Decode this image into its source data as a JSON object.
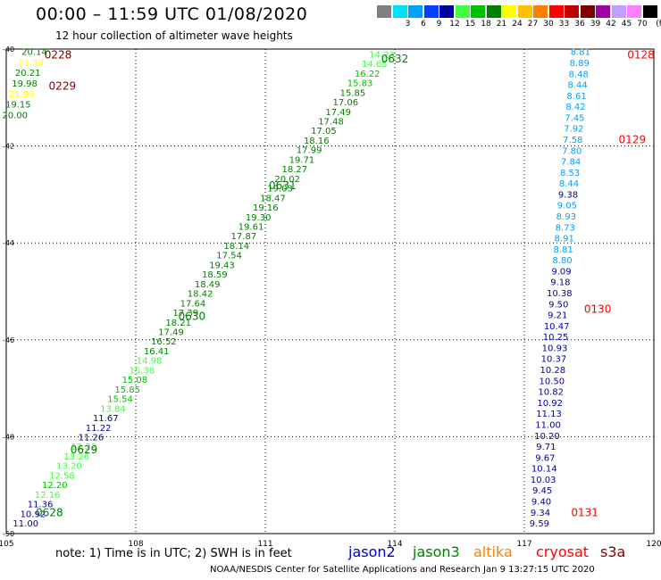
{
  "title": "00:00 – 11:59 UTC 01/08/2020",
  "subtitle": "12 hour collection of altimeter wave heights",
  "colorbar": {
    "unit": "(ft)",
    "swatches": [
      {
        "color": "#808080",
        "label": ""
      },
      {
        "color": "#00e0ff",
        "label": "3"
      },
      {
        "color": "#00a0ff",
        "label": "6"
      },
      {
        "color": "#0040ff",
        "label": "9"
      },
      {
        "color": "#0000a0",
        "label": "12"
      },
      {
        "color": "#40ff40",
        "label": "15"
      },
      {
        "color": "#00c000",
        "label": "18"
      },
      {
        "color": "#008000",
        "label": "21"
      },
      {
        "color": "#ffff00",
        "label": "24"
      },
      {
        "color": "#ffc000",
        "label": "27"
      },
      {
        "color": "#ff8000",
        "label": "30"
      },
      {
        "color": "#ff0000",
        "label": "33"
      },
      {
        "color": "#c00000",
        "label": "36"
      },
      {
        "color": "#800000",
        "label": "39"
      },
      {
        "color": "#a000a0",
        "label": "42"
      },
      {
        "color": "#c0a0ff",
        "label": "45"
      },
      {
        "color": "#ff80ff",
        "label": "70"
      },
      {
        "color": "#000000",
        "label": ""
      }
    ]
  },
  "map": {
    "lon_range": [
      105,
      120
    ],
    "lat_range": [
      -40,
      -50
    ],
    "x_ticks": [
      "105",
      "108",
      "111",
      "114",
      "117",
      "120"
    ],
    "y_ticks": [
      "-40",
      "-42",
      "-44",
      "-46",
      "-48",
      "-50"
    ]
  },
  "tracks": [
    {
      "color": "#00c000",
      "lon_start": 105.45,
      "lat_start": -49.78,
      "lon_end": 113.7,
      "lat_end": -40.1,
      "values": [
        "11.00",
        "10.92",
        "11.36",
        "12.16",
        "12.20",
        "12.58",
        "13.20",
        "13.26",
        "12.22",
        "11.26",
        "11.22",
        "11.67",
        "13.84",
        "15.54",
        "15.85",
        "15.08",
        "15.38",
        "14.98",
        "16.41",
        "16.52",
        "17.49",
        "18.21",
        "17.39",
        "17.64",
        "18.42",
        "18.49",
        "18.59",
        "19.43",
        "17.54",
        "18.14",
        "17.87",
        "19.61",
        "19.30",
        "19.16",
        "18.47",
        "19.03",
        "20.02",
        "18.27",
        "19.71",
        "17.99",
        "18.16",
        "17.05",
        "17.48",
        "17.49",
        "17.06",
        "15.85",
        "15.83",
        "16.22",
        "14.65",
        "14.23"
      ],
      "colors": [
        "#0000a0",
        "#0000a0",
        "#0000a0",
        "#40ff40",
        "#00c000",
        "#40ff40",
        "#40ff40",
        "#40ff40",
        "#40ff40",
        "#0000a0",
        "#0000a0",
        "#0000a0",
        "#40ff40",
        "#00c000",
        "#00c000",
        "#00c000",
        "#40ff40",
        "#40ff40",
        "#008000",
        "#008000",
        "#008000",
        "#008000",
        "#008000",
        "#008000",
        "#008000",
        "#008000",
        "#008000",
        "#008000",
        "#008000",
        "#008000",
        "#008000",
        "#008000",
        "#008000",
        "#008000",
        "#008000",
        "#008000",
        "#008000",
        "#008000",
        "#008000",
        "#008000",
        "#008000",
        "#008000",
        "#008000",
        "#008000",
        "#008000",
        "#008000",
        "#00c000",
        "#00c000",
        "#40ff40",
        "#40ff40"
      ]
    },
    {
      "color": "#00a0ff",
      "lon_start": 117.35,
      "lat_start": -49.78,
      "lon_end": 118.3,
      "lat_end": -40.05,
      "values": [
        "9.59",
        "9.34",
        "9.40",
        "9.45",
        "10.03",
        "10.14",
        "9.67",
        "9.71",
        "10.20",
        "11.00",
        "11.13",
        "10.92",
        "10.82",
        "10.50",
        "10.28",
        "10.37",
        "10.93",
        "10.25",
        "10.47",
        "9.21",
        "9.50",
        "10.38",
        "9.18",
        "9.09",
        "8.80",
        "8.81",
        "8.91",
        "8.73",
        "8.93",
        "9.05",
        "9.38",
        "8.44",
        "8.53",
        "7.84",
        "7.80",
        "7.58",
        "7.92",
        "7.45",
        "8.42",
        "8.61",
        "8.44",
        "8.48",
        "8.89",
        "8.81"
      ],
      "colors": [
        "#0000a0",
        "#0000a0",
        "#0000a0",
        "#0000a0",
        "#0000a0",
        "#0000a0",
        "#0000a0",
        "#0000a0",
        "#0000a0",
        "#0000a0",
        "#0000a0",
        "#0000a0",
        "#0000a0",
        "#0000a0",
        "#0000a0",
        "#0000a0",
        "#0000a0",
        "#0000a0",
        "#0000a0",
        "#0000a0",
        "#0000a0",
        "#0000a0",
        "#0000a0",
        "#0000a0",
        "#00a0ff",
        "#00a0ff",
        "#00a0ff",
        "#00a0ff",
        "#00a0ff",
        "#00a0ff",
        "#0000a0",
        "#00a0ff",
        "#00a0ff",
        "#00a0ff",
        "#00a0ff",
        "#00a0ff",
        "#00a0ff",
        "#00a0ff",
        "#00a0ff",
        "#00a0ff",
        "#00a0ff",
        "#00a0ff",
        "#00a0ff",
        "#00a0ff"
      ]
    },
    {
      "color": "#008000",
      "lon_start": 105.2,
      "lat_start": -41.35,
      "lon_end": 105.65,
      "lat_end": -40.05,
      "values": [
        "20.00",
        "19.15",
        "21.99",
        "19.98",
        "20.21",
        "21.39",
        "20.14"
      ],
      "colors": [
        "#008000",
        "#008000",
        "#ffff00",
        "#008000",
        "#008000",
        "#ffff00",
        "#008000"
      ]
    }
  ],
  "pass_labels": [
    {
      "text": "0628",
      "color": "#008000",
      "lon": 106.0,
      "lat": -49.55
    },
    {
      "text": "0629",
      "color": "#008000",
      "lon": 106.8,
      "lat": -48.25
    },
    {
      "text": "0630",
      "color": "#008000",
      "lon": 109.3,
      "lat": -45.5
    },
    {
      "text": "0631",
      "color": "#008000",
      "lon": 111.4,
      "lat": -42.8
    },
    {
      "text": "0632",
      "color": "#008000",
      "lon": 114.0,
      "lat": -40.18
    },
    {
      "text": "0228",
      "color": "#800000",
      "lon": 106.2,
      "lat": -40.1
    },
    {
      "text": "0229",
      "color": "#800000",
      "lon": 106.3,
      "lat": -40.75
    },
    {
      "text": "0128",
      "color": "#ff0000",
      "lon": 119.7,
      "lat": -40.1
    },
    {
      "text": "0129",
      "color": "#ff0000",
      "lon": 119.5,
      "lat": -41.85
    },
    {
      "text": "0130",
      "color": "#ff0000",
      "lon": 118.7,
      "lat": -45.35
    },
    {
      "text": "0131",
      "color": "#ff0000",
      "lon": 118.4,
      "lat": -49.55
    }
  ],
  "note": "note:  1) Time is in UTC;  2) SWH is in feet",
  "missions": [
    {
      "name": "jason2",
      "color": "#0000c0"
    },
    {
      "name": "jason3",
      "color": "#008000"
    },
    {
      "name": "altika",
      "color": "#ff8000"
    },
    {
      "name": "cryosat",
      "color": "#ff0000"
    },
    {
      "name": "s3a",
      "color": "#800000"
    }
  ],
  "footer": "NOAA/NESDIS Center for Satellite Applications and Research    Jan  9 13:27:15 UTC 2020"
}
